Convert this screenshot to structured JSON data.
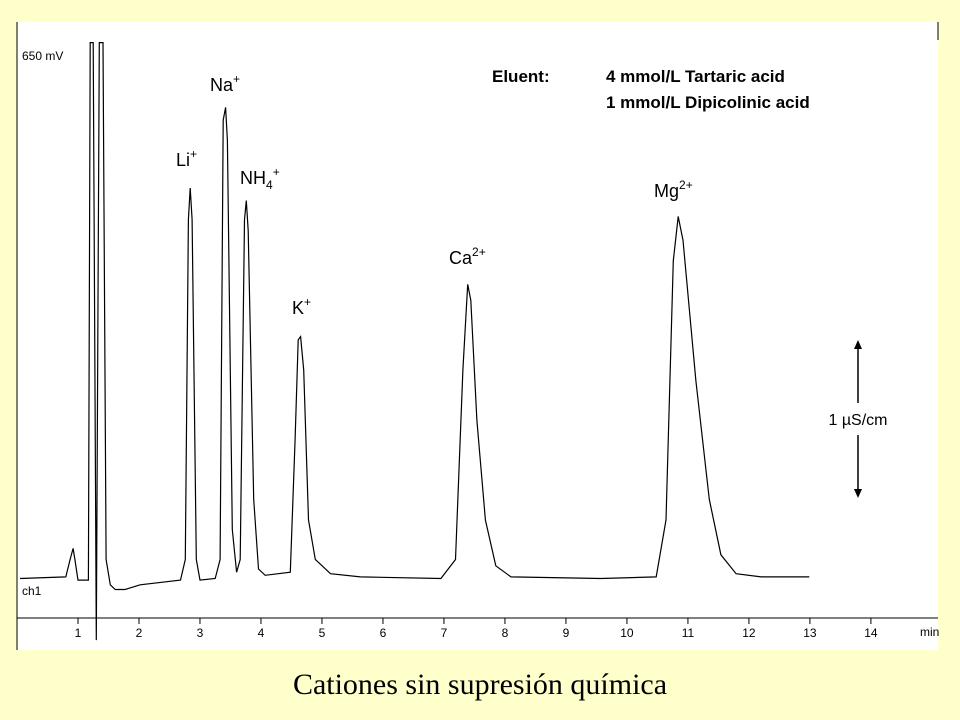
{
  "chart_data": {
    "type": "line",
    "x": [
      0.05,
      0.8,
      0.87,
      0.92,
      0.95,
      1.0,
      1.17,
      1.2,
      1.25,
      1.3,
      1.35,
      1.41,
      1.46,
      1.53,
      1.61,
      1.77,
      2.02,
      2.68,
      2.76,
      2.81,
      2.84,
      2.87,
      2.94,
      3.0,
      3.25,
      3.33,
      3.38,
      3.42,
      3.45,
      3.53,
      3.6,
      3.66,
      3.73,
      3.76,
      3.79,
      3.88,
      3.96,
      4.07,
      4.48,
      4.56,
      4.61,
      4.65,
      4.7,
      4.78,
      4.89,
      5.14,
      5.63,
      6.95,
      7.19,
      7.31,
      7.39,
      7.44,
      7.54,
      7.68,
      7.85,
      8.1,
      9.57,
      10.48,
      10.64,
      10.76,
      10.84,
      10.92,
      11.13,
      11.35,
      11.54,
      11.79,
      12.2,
      12.99
    ],
    "series": [
      {
        "color": "#000000",
        "values": [
          0.03,
          0.04,
          0.15,
          0.22,
          0.15,
          0.02,
          0.02,
          3.42,
          3.42,
          -0.36,
          3.42,
          3.42,
          0.15,
          -0.01,
          -0.04,
          -0.04,
          -0.01,
          0.02,
          0.15,
          2.3,
          2.5,
          2.3,
          0.15,
          0.02,
          0.03,
          0.15,
          2.93,
          3.01,
          2.8,
          0.34,
          0.07,
          0.15,
          2.3,
          2.42,
          2.23,
          0.53,
          0.09,
          0.05,
          0.07,
          0.91,
          1.54,
          1.56,
          1.35,
          0.4,
          0.15,
          0.06,
          0.04,
          0.03,
          0.15,
          1.35,
          1.89,
          1.79,
          1.03,
          0.4,
          0.11,
          0.04,
          0.03,
          0.04,
          0.4,
          2.04,
          2.32,
          2.17,
          1.28,
          0.53,
          0.18,
          0.06,
          0.04,
          0.04
        ]
      }
    ],
    "xlim": [
      0,
      15.1
    ],
    "ylim": [
      -0.22,
      3.55
    ],
    "xticks": [
      1,
      2,
      3,
      4,
      5,
      6,
      7,
      8,
      9,
      10,
      11,
      12,
      13,
      14
    ],
    "xlabel": "min",
    "top_label": "650 mV",
    "channel_label": "ch1",
    "annotations": [
      {
        "text": "Li",
        "sup": "+"
      },
      {
        "text": "Na",
        "sup": "+"
      },
      {
        "text": "NH",
        "sub": "4",
        "sup": "+"
      },
      {
        "text": "K",
        "sup": "+"
      },
      {
        "text": "Ca",
        "sup": "2+"
      },
      {
        "text": "Mg",
        "sup": "2+"
      }
    ],
    "eluent": {
      "label": "Eluent:",
      "lines": [
        "4 mmol/L Tartaric acid",
        "1 mmol/L Dipicolinic acid"
      ]
    },
    "scale_bar": {
      "label": "1 µS/cm",
      "value": 1
    },
    "caption": "Cationes sin supresión química"
  }
}
